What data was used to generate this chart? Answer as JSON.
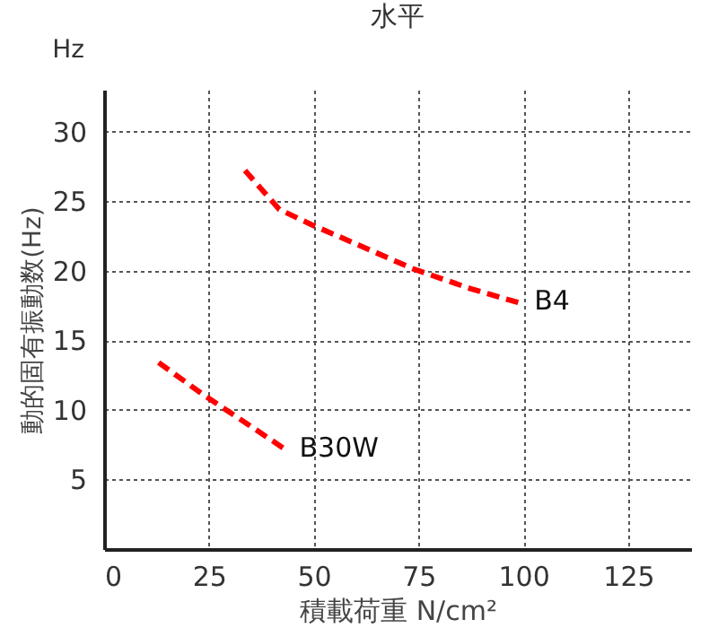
{
  "chart_data": {
    "type": "line",
    "title": "水平",
    "xlabel": "積載荷重 N/cm²",
    "ylabel": "動的固有振動数(Hz)",
    "annotations": [
      "Hz"
    ],
    "xlim": [
      0,
      140
    ],
    "xticks": [
      0,
      25,
      50,
      75,
      100,
      125
    ],
    "ylim": [
      0,
      33
    ],
    "yticks": [
      5,
      10,
      15,
      20,
      25,
      30
    ],
    "grid": true,
    "legend": false,
    "line_style": "dashed",
    "marker": "none",
    "series": [
      {
        "name": "B4",
        "color": "#ff0000",
        "x": [
          33.6,
          41.8,
          49.5,
          61,
          74,
          87.5,
          100
        ],
        "values": [
          27.2,
          24.4,
          23.3,
          21.8,
          20.1,
          18.7,
          17.6
        ]
      },
      {
        "name": "B30W",
        "color": "#ff0000",
        "x": [
          13,
          23.6,
          34.6,
          44
        ],
        "values": [
          13.4,
          11.1,
          8.9,
          7.0
        ]
      }
    ]
  }
}
